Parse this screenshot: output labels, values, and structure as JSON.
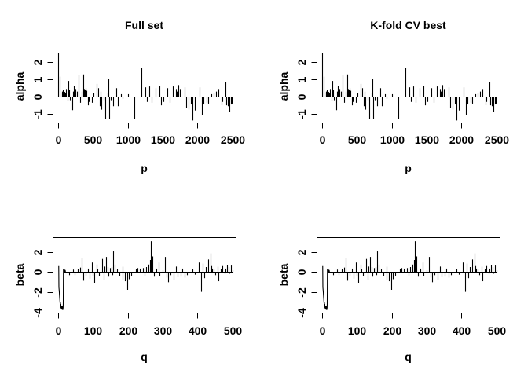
{
  "chart_data": {
    "type": "bar",
    "subtype": "spike-plot (R type='h' coefficient profiles), 2x2 panel grid; left and right columns show identical data",
    "colors": {
      "foreground": "#000000",
      "background": "#ffffff"
    },
    "grid": false,
    "legend": null,
    "panels": [
      {
        "position": "top-left",
        "row": 0,
        "col": 0,
        "title": "Full set",
        "xlabel": "p",
        "ylabel": "alpha",
        "series": "alpha"
      },
      {
        "position": "top-right",
        "row": 0,
        "col": 1,
        "title": "K-fold CV best",
        "xlabel": "p",
        "ylabel": "alpha",
        "series": "alpha"
      },
      {
        "position": "bottom-left",
        "row": 1,
        "col": 0,
        "title": "",
        "xlabel": "q",
        "ylabel": "beta",
        "series": "beta"
      },
      {
        "position": "bottom-right",
        "row": 1,
        "col": 1,
        "title": "",
        "xlabel": "q",
        "ylabel": "beta",
        "series": "beta"
      }
    ],
    "series": {
      "alpha": {
        "xticks": [
          0,
          500,
          1000,
          1500,
          2000,
          2500
        ],
        "yticks": [
          -1,
          0,
          1,
          2
        ],
        "xlim": [
          -80,
          2550
        ],
        "ylim": [
          -1.5,
          2.8
        ],
        "baseline": [
          0,
          2510
        ],
        "spikes": [
          [
            3,
            2.55
          ],
          [
            25,
            1.17
          ],
          [
            50,
            0.3
          ],
          [
            60,
            0.25
          ],
          [
            70,
            0.42
          ],
          [
            85,
            0.28
          ],
          [
            100,
            0.2
          ],
          [
            115,
            0.45
          ],
          [
            130,
            -0.25
          ],
          [
            143,
            0.92
          ],
          [
            160,
            0.4
          ],
          [
            172,
            -0.2
          ],
          [
            197,
            -0.78
          ],
          [
            212,
            0.3
          ],
          [
            230,
            0.65
          ],
          [
            244,
            0.45
          ],
          [
            267,
            0.3
          ],
          [
            293,
            1.25
          ],
          [
            320,
            -0.35
          ],
          [
            340,
            0.3
          ],
          [
            357,
            1.3
          ],
          [
            375,
            0.45
          ],
          [
            385,
            0.4
          ],
          [
            395,
            0.5
          ],
          [
            406,
            0.35
          ],
          [
            425,
            -0.5
          ],
          [
            444,
            -0.3
          ],
          [
            481,
            -0.35
          ],
          [
            510,
            0.2
          ],
          [
            556,
            0.75
          ],
          [
            575,
            0.5
          ],
          [
            594,
            -0.55
          ],
          [
            610,
            0.3
          ],
          [
            622,
            -0.75
          ],
          [
            650,
            -0.2
          ],
          [
            680,
            -1.3
          ],
          [
            706,
            0.2
          ],
          [
            722,
            1.05
          ],
          [
            737,
            -1.3
          ],
          [
            760,
            -0.2
          ],
          [
            785,
            -0.55
          ],
          [
            831,
            0.5
          ],
          [
            860,
            -0.55
          ],
          [
            905,
            0.15
          ],
          [
            920,
            -0.12
          ],
          [
            1007,
            0.15
          ],
          [
            1094,
            -1.3
          ],
          [
            1196,
            1.7
          ],
          [
            1252,
            0.55
          ],
          [
            1278,
            -0.3
          ],
          [
            1308,
            0.6
          ],
          [
            1346,
            -0.35
          ],
          [
            1402,
            0.5
          ],
          [
            1459,
            0.65
          ],
          [
            1477,
            -0.5
          ],
          [
            1515,
            -0.3
          ],
          [
            1571,
            0.5
          ],
          [
            1598,
            -0.35
          ],
          [
            1647,
            0.6
          ],
          [
            1690,
            0.45
          ],
          [
            1704,
            0.3
          ],
          [
            1727,
            0.68
          ],
          [
            1748,
            0.45
          ],
          [
            1816,
            0.55
          ],
          [
            1842,
            -0.65
          ],
          [
            1873,
            -0.75
          ],
          [
            1910,
            -0.45
          ],
          [
            1929,
            -1.38
          ],
          [
            1959,
            -0.8
          ],
          [
            2034,
            0.55
          ],
          [
            2061,
            -1.05
          ],
          [
            2091,
            -0.45
          ],
          [
            2136,
            -0.35
          ],
          [
            2155,
            -0.4
          ],
          [
            2200,
            0.15
          ],
          [
            2230,
            0.22
          ],
          [
            2268,
            0.3
          ],
          [
            2306,
            0.45
          ],
          [
            2343,
            -0.5
          ],
          [
            2360,
            -0.3
          ],
          [
            2400,
            0.85
          ],
          [
            2420,
            -0.5
          ],
          [
            2440,
            -0.55
          ],
          [
            2460,
            -0.9
          ],
          [
            2478,
            -0.45
          ],
          [
            2495,
            -0.4
          ]
        ]
      },
      "beta": {
        "xticks": [
          0,
          100,
          200,
          300,
          400,
          500
        ],
        "yticks": [
          -4,
          -2,
          0,
          2
        ],
        "xlim": [
          -16,
          510
        ],
        "ylim": [
          -4.0,
          3.45
        ],
        "baseline": [
          15,
          503
        ],
        "lead_path": [
          [
            1.5,
            0.6
          ],
          [
            2,
            -1.5
          ],
          [
            3,
            -1.9
          ],
          [
            4,
            -2.4
          ],
          [
            5,
            -2.9
          ],
          [
            6,
            -3.3
          ],
          [
            6.5,
            -3.0
          ],
          [
            7,
            -3.45
          ],
          [
            7.5,
            -3.15
          ],
          [
            8,
            -3.55
          ],
          [
            8.5,
            -3.3
          ],
          [
            9,
            -3.65
          ],
          [
            9.5,
            -3.35
          ],
          [
            10,
            -3.7
          ],
          [
            10.5,
            -3.4
          ],
          [
            11,
            -3.6
          ],
          [
            11.5,
            -3.3
          ],
          [
            12,
            -3.65
          ],
          [
            12.5,
            -3.4
          ],
          [
            13,
            -3.75
          ],
          [
            13.5,
            -3.5
          ],
          [
            14,
            -3.6
          ],
          [
            14.5,
            -3.1
          ],
          [
            15,
            0.3
          ],
          [
            15.5,
            0
          ],
          [
            17,
            0.05
          ],
          [
            18,
            0.25
          ],
          [
            19,
            0
          ],
          [
            20,
            0.2
          ],
          [
            21,
            0
          ]
        ],
        "spikes": [
          [
            32,
            -0.3
          ],
          [
            43,
            0.25
          ],
          [
            47,
            -0.3
          ],
          [
            56,
            0.3
          ],
          [
            64,
            0.45
          ],
          [
            68,
            1.4
          ],
          [
            72,
            -0.85
          ],
          [
            78,
            -0.35
          ],
          [
            85,
            0.35
          ],
          [
            91,
            -0.65
          ],
          [
            96,
            0.95
          ],
          [
            100,
            -0.4
          ],
          [
            104,
            -1.05
          ],
          [
            110,
            0.75
          ],
          [
            113,
            0.3
          ],
          [
            118,
            -0.4
          ],
          [
            126,
            1.3
          ],
          [
            130,
            -0.8
          ],
          [
            134,
            0.55
          ],
          [
            138,
            1.5
          ],
          [
            141,
            0.5
          ],
          [
            144,
            -0.45
          ],
          [
            149,
            0.4
          ],
          [
            154,
            0.5
          ],
          [
            156,
            -0.3
          ],
          [
            158,
            2.05
          ],
          [
            162,
            0.75
          ],
          [
            170,
            0.3
          ],
          [
            177,
            -0.4
          ],
          [
            184,
            0.55
          ],
          [
            186,
            -0.75
          ],
          [
            192,
            -0.9
          ],
          [
            198,
            -1.75
          ],
          [
            204,
            -0.7
          ],
          [
            209,
            -0.35
          ],
          [
            224,
            0.3
          ],
          [
            228,
            0.4
          ],
          [
            235,
            0.35
          ],
          [
            244,
            0.4
          ],
          [
            248,
            -0.35
          ],
          [
            253,
            0.5
          ],
          [
            260,
            0.75
          ],
          [
            263,
            1.2
          ],
          [
            267,
            3.05
          ],
          [
            271,
            1.55
          ],
          [
            275,
            -0.45
          ],
          [
            281,
            0.35
          ],
          [
            288,
            0.95
          ],
          [
            292,
            -0.4
          ],
          [
            299,
            0.2
          ],
          [
            307,
            1.5
          ],
          [
            311,
            -0.55
          ],
          [
            315,
            -1.0
          ],
          [
            323,
            -0.3
          ],
          [
            331,
            -0.8
          ],
          [
            338,
            0.55
          ],
          [
            344,
            -0.5
          ],
          [
            352,
            -0.45
          ],
          [
            357,
            0.35
          ],
          [
            363,
            -0.55
          ],
          [
            369,
            -0.3
          ],
          [
            386,
            0.3
          ],
          [
            392,
            -0.25
          ],
          [
            405,
            0.95
          ],
          [
            411,
            -1.95
          ],
          [
            416,
            0.85
          ],
          [
            420,
            -0.6
          ],
          [
            425,
            0.5
          ],
          [
            431,
            1.25
          ],
          [
            437,
            1.85
          ],
          [
            440,
            0.6
          ],
          [
            443,
            0.35
          ],
          [
            446,
            0.3
          ],
          [
            452,
            -0.3
          ],
          [
            457,
            0.55
          ],
          [
            461,
            -0.9
          ],
          [
            468,
            0.3
          ],
          [
            472,
            0.6
          ],
          [
            478,
            -0.2
          ],
          [
            481,
            0.35
          ],
          [
            486,
            0.7
          ],
          [
            489,
            0.5
          ],
          [
            493,
            -0.15
          ],
          [
            496,
            0.65
          ],
          [
            500,
            0.2
          ]
        ]
      }
    }
  }
}
